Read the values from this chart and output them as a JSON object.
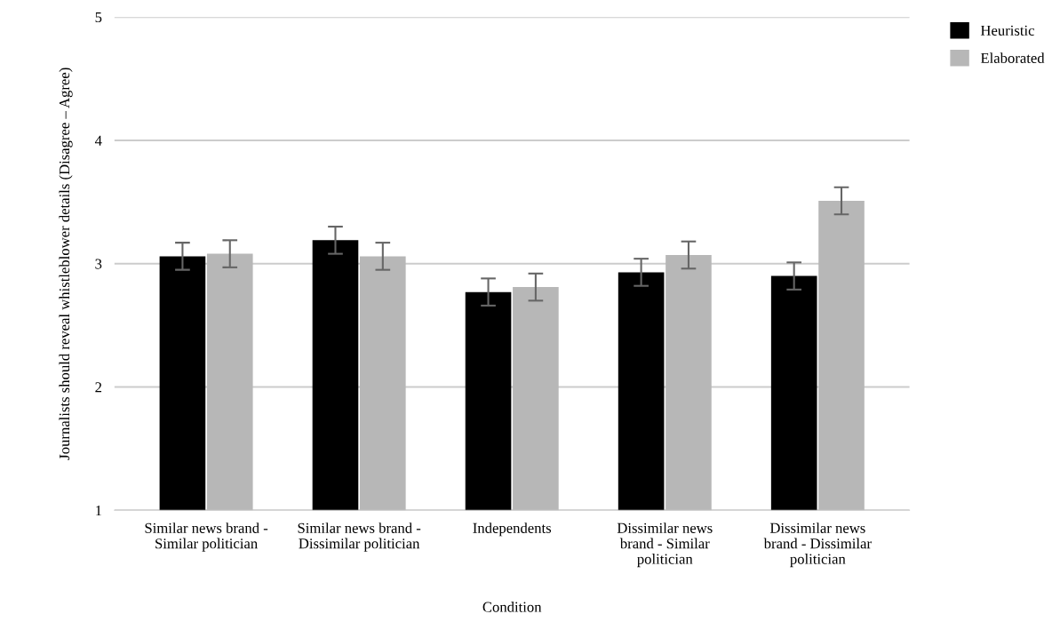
{
  "chart_data": {
    "type": "bar",
    "categories": [
      "Similar news brand -\nSimilar politician",
      "Similar news brand -\nDissimilar politician",
      "Independents",
      "Dissimilar news\nbrand - Similar\npolitician",
      "Dissimilar news\nbrand - Dissimilar\npolitician"
    ],
    "series": [
      {
        "name": "Heuristic",
        "color": "#000000",
        "values": [
          3.06,
          3.19,
          2.77,
          2.93,
          2.9
        ],
        "errors": [
          0.11,
          0.11,
          0.11,
          0.11,
          0.11
        ]
      },
      {
        "name": "Elaborated",
        "color": "#b7b7b7",
        "values": [
          3.08,
          3.06,
          2.81,
          3.07,
          3.51
        ],
        "errors": [
          0.11,
          0.11,
          0.11,
          0.11,
          0.11
        ]
      }
    ],
    "xlabel": "Condition",
    "ylabel": "Journalists should reveal whistleblower details (Disagree – Agree)",
    "ylim": [
      1,
      5
    ],
    "yticks": [
      1,
      2,
      3,
      4,
      5
    ],
    "grid": "y",
    "legend": "top right"
  }
}
